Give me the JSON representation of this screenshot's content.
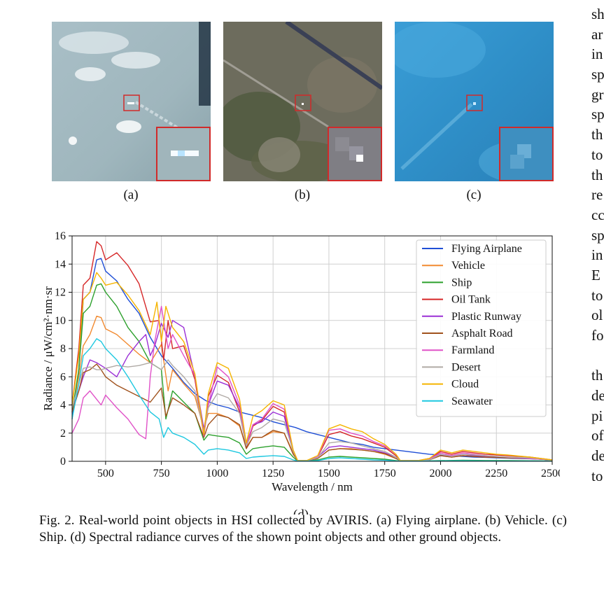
{
  "panels": [
    {
      "label": "(a)"
    },
    {
      "label": "(b)"
    },
    {
      "label": "(c)"
    }
  ],
  "chart_label": "(d)",
  "caption": "Fig. 2.  Real-world point objects in HSI collected by AVIRIS. (a) Flying airplane. (b) Vehicle. (c) Ship. (d) Spectral radiance curves of the shown point objects and other ground objects.",
  "right_column_fragments": [
    "sh",
    "ar",
    "in",
    "sp",
    "gr",
    "sp",
    "th",
    "to",
    "th",
    "re",
    "cc",
    "sp",
    "in",
    "E",
    "to",
    "ol",
    "fo",
    "",
    "th",
    "de",
    "pi",
    "of",
    "de",
    "to"
  ],
  "chart_data": {
    "type": "line",
    "xlabel": "Wavelength / nm",
    "ylabel": "Radiance / μW/cm²·nm·sr",
    "xlim": [
      350,
      2500
    ],
    "ylim": [
      0,
      16
    ],
    "xticks": [
      500,
      750,
      1000,
      1250,
      1500,
      1750,
      2000,
      2250,
      2500
    ],
    "yticks": [
      0,
      2,
      4,
      6,
      8,
      10,
      12,
      14,
      16
    ],
    "grid": true,
    "legend_position": "top-right",
    "series": [
      {
        "name": "Flying Airplane",
        "color": "#1f4fd6",
        "x": [
          350,
          380,
          400,
          430,
          460,
          480,
          500,
          550,
          600,
          650,
          700,
          750,
          800,
          850,
          900,
          950,
          1000,
          1050,
          1100,
          1150,
          1200,
          1250,
          1300,
          1350,
          1400,
          1450,
          1500,
          1550,
          1600,
          1650,
          1700,
          1750,
          1800,
          1850,
          1900,
          1950,
          2000,
          2050,
          2100,
          2150,
          2200,
          2250,
          2300,
          2350,
          2400,
          2450,
          2500
        ],
        "y": [
          3.0,
          6.5,
          11.5,
          12.0,
          14.3,
          14.4,
          13.5,
          12.8,
          11.5,
          10.5,
          8.8,
          7.5,
          6.6,
          5.6,
          4.8,
          4.3,
          4.0,
          3.8,
          3.5,
          3.3,
          3.1,
          2.8,
          2.6,
          2.4,
          2.1,
          1.9,
          1.7,
          1.5,
          1.3,
          1.2,
          1.0,
          0.9,
          0.8,
          0.7,
          0.6,
          0.5,
          0.45,
          0.4,
          0.35,
          0.3,
          0.28,
          0.25,
          0.22,
          0.2,
          0.18,
          0.15,
          0.1
        ]
      },
      {
        "name": "Vehicle",
        "color": "#f28a30",
        "x": [
          350,
          380,
          400,
          430,
          460,
          480,
          500,
          550,
          600,
          650,
          700,
          750,
          780,
          800,
          850,
          900,
          940,
          960,
          1000,
          1050,
          1100,
          1130,
          1160,
          1200,
          1250,
          1300,
          1340,
          1360,
          1400,
          1450,
          1500,
          1550,
          1600,
          1650,
          1700,
          1750,
          1800,
          1820,
          1900,
          1950,
          2000,
          2050,
          2100,
          2150,
          2200,
          2250,
          2300,
          2400,
          2500
        ],
        "y": [
          3.5,
          6.0,
          8.2,
          9.0,
          10.3,
          10.2,
          9.4,
          9.0,
          8.3,
          7.6,
          7.0,
          8.3,
          5.0,
          6.5,
          5.5,
          4.6,
          2.3,
          3.4,
          3.4,
          3.1,
          2.5,
          1.0,
          1.7,
          1.7,
          2.1,
          2.0,
          0.6,
          0.05,
          0.05,
          0.2,
          0.8,
          0.9,
          0.9,
          0.8,
          0.7,
          0.5,
          0.2,
          0.05,
          0.05,
          0.1,
          0.4,
          0.3,
          0.4,
          0.35,
          0.3,
          0.3,
          0.25,
          0.2,
          0.1
        ]
      },
      {
        "name": "Ship",
        "color": "#2ca02c",
        "x": [
          350,
          380,
          400,
          430,
          460,
          480,
          500,
          550,
          600,
          650,
          700,
          750,
          770,
          800,
          850,
          900,
          940,
          960,
          1000,
          1050,
          1100,
          1130,
          1160,
          1200,
          1250,
          1300,
          1340,
          1360,
          1400,
          1450,
          1500,
          1550,
          1600,
          1650,
          1700,
          1750,
          1800,
          1820,
          1900,
          2000,
          2100,
          2200,
          2300,
          2400,
          2500
        ],
        "y": [
          3.5,
          6.5,
          10.5,
          11.0,
          12.5,
          12.6,
          12.0,
          11.0,
          9.5,
          8.5,
          7.0,
          6.5,
          3.0,
          5.0,
          4.2,
          3.4,
          1.5,
          1.9,
          1.8,
          1.7,
          1.3,
          0.5,
          0.9,
          1.0,
          1.1,
          1.0,
          0.3,
          0.02,
          0.02,
          0.1,
          0.3,
          0.35,
          0.3,
          0.25,
          0.2,
          0.15,
          0.05,
          0.02,
          0.02,
          0.05,
          0.08,
          0.06,
          0.05,
          0.04,
          0.03
        ]
      },
      {
        "name": "Oil Tank",
        "color": "#d62728",
        "x": [
          350,
          380,
          400,
          430,
          460,
          480,
          500,
          550,
          600,
          650,
          700,
          740,
          760,
          780,
          800,
          850,
          900,
          940,
          960,
          1000,
          1050,
          1100,
          1130,
          1160,
          1200,
          1250,
          1300,
          1340,
          1360,
          1400,
          1450,
          1500,
          1550,
          1600,
          1650,
          1700,
          1750,
          1800,
          1820,
          1900,
          1950,
          2000,
          2050,
          2100,
          2150,
          2200,
          2250,
          2300,
          2400,
          2500
        ],
        "y": [
          4.0,
          8.0,
          12.5,
          13.0,
          15.6,
          15.3,
          14.3,
          14.8,
          13.9,
          12.6,
          9.9,
          10.0,
          7.2,
          10.0,
          8.0,
          8.2,
          5.8,
          1.8,
          4.6,
          6.1,
          5.6,
          3.5,
          1.0,
          2.5,
          2.9,
          3.9,
          3.5,
          0.7,
          0.05,
          0.05,
          0.3,
          1.9,
          2.1,
          1.8,
          1.6,
          1.3,
          1.0,
          0.4,
          0.05,
          0.05,
          0.2,
          0.7,
          0.5,
          0.7,
          0.6,
          0.5,
          0.45,
          0.4,
          0.3,
          0.1
        ]
      },
      {
        "name": "Plastic Runway",
        "color": "#9b30d6",
        "x": [
          350,
          380,
          400,
          430,
          460,
          480,
          500,
          550,
          600,
          650,
          680,
          700,
          720,
          750,
          780,
          800,
          850,
          900,
          940,
          960,
          1000,
          1050,
          1100,
          1130,
          1160,
          1200,
          1250,
          1300,
          1340,
          1360,
          1400,
          1450,
          1500,
          1550,
          1600,
          1650,
          1700,
          1750,
          1800,
          1820,
          1900,
          1950,
          2000,
          2050,
          2100,
          2150,
          2200,
          2250,
          2300,
          2400,
          2500
        ],
        "y": [
          3.5,
          5.0,
          6.0,
          7.2,
          7.0,
          6.8,
          6.6,
          6.0,
          7.5,
          8.5,
          9.0,
          7.5,
          8.2,
          9.8,
          8.8,
          10.0,
          9.5,
          6.0,
          2.3,
          4.0,
          5.7,
          5.4,
          3.8,
          1.2,
          2.6,
          2.8,
          3.5,
          3.2,
          0.7,
          0.05,
          0.05,
          0.3,
          1.0,
          1.1,
          1.0,
          0.9,
          0.8,
          0.6,
          0.3,
          0.05,
          0.05,
          0.15,
          0.5,
          0.3,
          0.5,
          0.4,
          0.35,
          0.3,
          0.25,
          0.2,
          0.1
        ]
      },
      {
        "name": "Asphalt Road",
        "color": "#a0521d",
        "x": [
          350,
          380,
          400,
          430,
          460,
          480,
          500,
          550,
          600,
          650,
          700,
          750,
          770,
          800,
          850,
          900,
          940,
          960,
          1000,
          1050,
          1100,
          1130,
          1160,
          1200,
          1250,
          1300,
          1340,
          1360,
          1400,
          1450,
          1500,
          1550,
          1600,
          1650,
          1700,
          1750,
          1800,
          1820,
          1900,
          1950,
          2000,
          2050,
          2100,
          2150,
          2200,
          2250,
          2300,
          2400,
          2500
        ],
        "y": [
          3.5,
          5.0,
          6.3,
          6.5,
          6.9,
          6.5,
          6.0,
          5.4,
          5.0,
          4.6,
          4.2,
          5.2,
          3.2,
          4.5,
          4.0,
          3.4,
          1.7,
          2.6,
          3.3,
          3.1,
          2.6,
          0.9,
          1.7,
          1.7,
          2.2,
          2.0,
          0.5,
          0.05,
          0.05,
          0.2,
          0.8,
          0.9,
          0.85,
          0.8,
          0.7,
          0.55,
          0.2,
          0.05,
          0.05,
          0.1,
          0.4,
          0.3,
          0.4,
          0.35,
          0.3,
          0.28,
          0.25,
          0.2,
          0.1
        ]
      },
      {
        "name": "Farmland",
        "color": "#e052c8",
        "x": [
          350,
          380,
          400,
          430,
          460,
          480,
          500,
          550,
          600,
          650,
          680,
          700,
          720,
          750,
          780,
          800,
          850,
          900,
          940,
          960,
          1000,
          1050,
          1100,
          1130,
          1160,
          1200,
          1250,
          1300,
          1340,
          1360,
          1400,
          1450,
          1500,
          1550,
          1600,
          1650,
          1700,
          1750,
          1800,
          1820,
          1900,
          1950,
          2000,
          2050,
          2100,
          2150,
          2200,
          2250,
          2300,
          2400,
          2500
        ],
        "y": [
          2.0,
          3.0,
          4.5,
          5.0,
          4.4,
          4.0,
          4.7,
          3.8,
          3.0,
          1.9,
          1.6,
          6.0,
          8.5,
          11.0,
          8.0,
          9.0,
          7.5,
          6.1,
          1.8,
          4.0,
          6.7,
          6.0,
          4.0,
          1.1,
          2.6,
          3.0,
          4.1,
          3.7,
          0.8,
          0.05,
          0.05,
          0.3,
          2.2,
          2.3,
          2.0,
          1.8,
          1.4,
          1.1,
          0.5,
          0.05,
          0.05,
          0.15,
          0.6,
          0.4,
          0.6,
          0.5,
          0.4,
          0.35,
          0.3,
          0.2,
          0.1
        ]
      },
      {
        "name": "Desert",
        "color": "#b0aaa5",
        "x": [
          350,
          380,
          400,
          430,
          460,
          480,
          500,
          550,
          600,
          650,
          700,
          750,
          780,
          800,
          850,
          900,
          940,
          960,
          1000,
          1050,
          1100,
          1130,
          1160,
          1200,
          1250,
          1300,
          1340,
          1360,
          1400,
          1450,
          1500,
          1550,
          1600,
          1650,
          1700,
          1750,
          1800,
          1820,
          1900,
          1950,
          2000,
          2050,
          2100,
          2150,
          2200,
          2250,
          2300,
          2400,
          2500
        ],
        "y": [
          3.8,
          5.5,
          6.6,
          6.7,
          6.5,
          6.5,
          6.6,
          6.8,
          6.7,
          6.8,
          7.0,
          6.5,
          7.2,
          6.8,
          6.0,
          5.0,
          2.1,
          3.8,
          4.8,
          4.5,
          3.4,
          1.1,
          2.1,
          2.4,
          3.0,
          2.8,
          0.7,
          0.05,
          0.05,
          0.25,
          1.3,
          1.4,
          1.3,
          1.1,
          0.9,
          0.7,
          0.3,
          0.05,
          0.05,
          0.1,
          0.5,
          0.35,
          0.5,
          0.45,
          0.4,
          0.35,
          0.3,
          0.25,
          0.1
        ]
      },
      {
        "name": "Cloud",
        "color": "#f5b400",
        "x": [
          350,
          380,
          400,
          430,
          460,
          480,
          500,
          550,
          600,
          650,
          700,
          730,
          750,
          770,
          800,
          850,
          900,
          940,
          960,
          1000,
          1050,
          1100,
          1130,
          1160,
          1200,
          1250,
          1300,
          1340,
          1360,
          1400,
          1450,
          1500,
          1550,
          1600,
          1650,
          1700,
          1750,
          1800,
          1820,
          1900,
          1950,
          2000,
          2050,
          2100,
          2150,
          2200,
          2250,
          2300,
          2400,
          2500
        ],
        "y": [
          4.0,
          7.5,
          11.5,
          12.0,
          13.4,
          13.0,
          12.5,
          12.7,
          11.8,
          10.7,
          9.0,
          11.3,
          8.5,
          11.0,
          9.5,
          8.5,
          6.2,
          1.9,
          4.8,
          7.0,
          6.6,
          4.4,
          1.3,
          3.2,
          3.6,
          4.3,
          4.0,
          0.8,
          0.05,
          0.05,
          0.4,
          2.3,
          2.6,
          2.3,
          2.1,
          1.6,
          1.2,
          0.5,
          0.05,
          0.05,
          0.2,
          0.8,
          0.6,
          0.8,
          0.7,
          0.6,
          0.5,
          0.45,
          0.3,
          0.1
        ]
      },
      {
        "name": "Seawater",
        "color": "#1ec8e0",
        "x": [
          350,
          380,
          400,
          430,
          460,
          480,
          500,
          550,
          600,
          650,
          700,
          740,
          760,
          780,
          800,
          850,
          900,
          940,
          960,
          1000,
          1050,
          1100,
          1130,
          1160,
          1200,
          1250,
          1300,
          1340,
          1360,
          1400,
          1450,
          1500,
          1550,
          1600,
          1650,
          1700,
          1750,
          1800,
          1820,
          1900,
          2000,
          2100,
          2200,
          2300,
          2400,
          2500
        ],
        "y": [
          3.0,
          5.5,
          7.5,
          8.0,
          8.7,
          8.5,
          8.0,
          7.2,
          6.0,
          4.7,
          3.5,
          3.0,
          1.7,
          2.4,
          2.0,
          1.7,
          1.2,
          0.5,
          0.8,
          0.9,
          0.8,
          0.6,
          0.2,
          0.3,
          0.35,
          0.4,
          0.35,
          0.1,
          0.02,
          0.02,
          0.05,
          0.2,
          0.25,
          0.2,
          0.15,
          0.1,
          0.08,
          0.03,
          0.02,
          0.02,
          0.03,
          0.04,
          0.03,
          0.02,
          0.02,
          0.01
        ]
      }
    ]
  }
}
